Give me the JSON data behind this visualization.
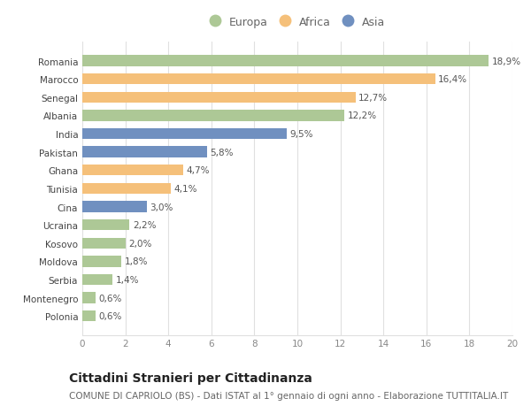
{
  "countries": [
    "Romania",
    "Marocco",
    "Senegal",
    "Albania",
    "India",
    "Pakistan",
    "Ghana",
    "Tunisia",
    "Cina",
    "Ucraina",
    "Kosovo",
    "Moldova",
    "Serbia",
    "Montenegro",
    "Polonia"
  ],
  "values": [
    18.9,
    16.4,
    12.7,
    12.2,
    9.5,
    5.8,
    4.7,
    4.1,
    3.0,
    2.2,
    2.0,
    1.8,
    1.4,
    0.6,
    0.6
  ],
  "labels": [
    "18,9%",
    "16,4%",
    "12,7%",
    "12,2%",
    "9,5%",
    "5,8%",
    "4,7%",
    "4,1%",
    "3,0%",
    "2,2%",
    "2,0%",
    "1,8%",
    "1,4%",
    "0,6%",
    "0,6%"
  ],
  "continents": [
    "Europa",
    "Africa",
    "Africa",
    "Europa",
    "Asia",
    "Asia",
    "Africa",
    "Africa",
    "Asia",
    "Europa",
    "Europa",
    "Europa",
    "Europa",
    "Europa",
    "Europa"
  ],
  "colors": {
    "Europa": "#adc896",
    "Africa": "#f5c07a",
    "Asia": "#7090c0"
  },
  "xlim": [
    0,
    20
  ],
  "xticks": [
    0,
    2,
    4,
    6,
    8,
    10,
    12,
    14,
    16,
    18,
    20
  ],
  "title": "Cittadini Stranieri per Cittadinanza",
  "subtitle": "COMUNE DI CAPRIOLO (BS) - Dati ISTAT al 1° gennaio di ogni anno - Elaborazione TUTTITALIA.IT",
  "bg_color": "#ffffff",
  "grid_color": "#e0e0e0",
  "bar_height": 0.6,
  "label_fontsize": 7.5,
  "title_fontsize": 10,
  "subtitle_fontsize": 7.5,
  "ytick_fontsize": 7.5,
  "xtick_fontsize": 7.5,
  "legend_fontsize": 9
}
